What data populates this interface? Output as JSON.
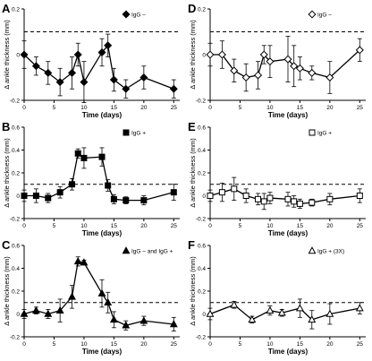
{
  "chart_data": [
    {
      "panel": "A",
      "type": "line",
      "marker": "diamond",
      "filled": true,
      "legend": "IgG –",
      "xlabel": "Time (days)",
      "ylabel": "Δ ankle thickness (mm)",
      "xlim": [
        0,
        26
      ],
      "ylim": [
        -0.2,
        0.2
      ],
      "xticks": [
        0,
        5,
        10,
        15,
        20,
        25
      ],
      "yticks": [
        -0.2,
        0,
        0.2
      ],
      "reference_line": 0.1,
      "x": [
        0,
        2,
        4,
        6,
        8,
        9,
        10,
        13,
        14,
        15,
        17,
        20,
        25
      ],
      "y": [
        0.0,
        -0.05,
        -0.08,
        -0.12,
        -0.08,
        0.0,
        -0.12,
        0.01,
        0.04,
        -0.11,
        -0.15,
        -0.1,
        -0.15
      ],
      "err": [
        0.06,
        0.04,
        0.05,
        0.06,
        0.07,
        0.05,
        0.09,
        0.06,
        0.05,
        0.05,
        0.04,
        0.05,
        0.04
      ]
    },
    {
      "panel": "B",
      "type": "line",
      "marker": "square",
      "filled": true,
      "legend": "IgG +",
      "xlabel": "Time (days)",
      "ylabel": "Δ ankle thickness (mm)",
      "xlim": [
        0,
        26
      ],
      "ylim": [
        -0.2,
        0.6
      ],
      "xticks": [
        0,
        5,
        10,
        15,
        20,
        25
      ],
      "yticks": [
        -0.2,
        0,
        0.2,
        0.4,
        0.6
      ],
      "reference_line": 0.1,
      "x": [
        0,
        2,
        4,
        6,
        8,
        9,
        10,
        13,
        14,
        15,
        17,
        20,
        25
      ],
      "y": [
        0.0,
        0.0,
        -0.02,
        0.03,
        0.1,
        0.37,
        0.33,
        0.34,
        0.09,
        -0.03,
        -0.04,
        -0.04,
        0.03
      ],
      "err": [
        0.05,
        0.06,
        0.04,
        0.05,
        0.05,
        0.04,
        0.09,
        0.08,
        0.05,
        0.04,
        0.03,
        0.04,
        0.07
      ]
    },
    {
      "panel": "C",
      "type": "line",
      "marker": "triangle",
      "filled": true,
      "legend": "IgG – and IgG +",
      "xlabel": "Time (days)",
      "ylabel": "Δ ankle thickness (mm)",
      "xlim": [
        0,
        26
      ],
      "ylim": [
        -0.2,
        0.6
      ],
      "xticks": [
        0,
        5,
        10,
        15,
        20,
        25
      ],
      "yticks": [
        -0.2,
        0,
        0.2,
        0.4,
        0.6
      ],
      "reference_line": 0.1,
      "x": [
        0,
        2,
        4,
        6,
        8,
        9,
        10,
        13,
        14,
        15,
        17,
        20,
        25
      ],
      "y": [
        0.0,
        0.03,
        0.0,
        0.03,
        0.15,
        0.46,
        0.45,
        0.18,
        0.1,
        -0.05,
        -0.1,
        -0.06,
        -0.09
      ],
      "err": [
        0.04,
        0.03,
        0.04,
        0.1,
        0.1,
        0.04,
        0.02,
        0.12,
        0.09,
        0.07,
        0.04,
        0.04,
        0.06
      ]
    },
    {
      "panel": "D",
      "type": "line",
      "marker": "diamond",
      "filled": false,
      "legend": "IgG –",
      "xlabel": "Time (days)",
      "ylabel": "Δ ankle thickness (mm)",
      "xlim": [
        0,
        26
      ],
      "ylim": [
        -0.2,
        0.2
      ],
      "xticks": [
        0,
        5,
        10,
        15,
        20,
        25
      ],
      "yticks": [
        -0.2,
        0,
        0.2
      ],
      "reference_line": 0.1,
      "x": [
        0,
        2,
        4,
        6,
        8,
        9,
        10,
        13,
        14,
        15,
        17,
        20,
        25
      ],
      "y": [
        0.0,
        0.0,
        -0.07,
        -0.1,
        -0.09,
        0.0,
        -0.03,
        -0.02,
        -0.05,
        -0.06,
        -0.08,
        -0.1,
        0.02
      ],
      "err": [
        0.05,
        0.06,
        0.05,
        0.06,
        0.06,
        0.04,
        0.07,
        0.1,
        0.09,
        0.05,
        0.03,
        0.07,
        0.05
      ]
    },
    {
      "panel": "E",
      "type": "line",
      "marker": "square",
      "filled": false,
      "legend": "IgG +",
      "xlabel": "Time (days)",
      "ylabel": "Δ ankle thickness (mm)",
      "xlim": [
        0,
        26
      ],
      "ylim": [
        -0.2,
        0.6
      ],
      "xticks": [
        0,
        5,
        10,
        15,
        20,
        25
      ],
      "yticks": [
        -0.2,
        0,
        0.2,
        0.4,
        0.6
      ],
      "reference_line": 0.1,
      "x": [
        0,
        2,
        4,
        6,
        8,
        9,
        10,
        13,
        14,
        15,
        17,
        20,
        25
      ],
      "y": [
        0.0,
        0.03,
        0.06,
        0.0,
        -0.03,
        -0.05,
        -0.02,
        -0.03,
        -0.05,
        -0.07,
        -0.06,
        -0.03,
        0.0
      ],
      "err": [
        0.05,
        0.08,
        0.1,
        0.06,
        0.05,
        0.07,
        0.05,
        0.06,
        0.05,
        0.04,
        0.03,
        0.05,
        0.06
      ]
    },
    {
      "panel": "F",
      "type": "line",
      "marker": "triangle",
      "filled": false,
      "legend": "IgG + (3X)",
      "xlabel": "Time (days)",
      "ylabel": "Δ ankle thickness (mm)",
      "xlim": [
        0,
        26
      ],
      "ylim": [
        -0.2,
        0.6
      ],
      "xticks": [
        0,
        5,
        10,
        15,
        20,
        25
      ],
      "yticks": [
        -0.2,
        0,
        0.2,
        0.4,
        0.6
      ],
      "reference_line": 0.1,
      "x": [
        0,
        4,
        7,
        10,
        12,
        15,
        17,
        20,
        25
      ],
      "y": [
        0.0,
        0.08,
        -0.05,
        0.03,
        0.01,
        0.05,
        -0.05,
        0.0,
        0.05
      ],
      "err": [
        0.05,
        0.03,
        0.03,
        0.04,
        0.03,
        0.08,
        0.08,
        0.09,
        0.05
      ]
    }
  ]
}
